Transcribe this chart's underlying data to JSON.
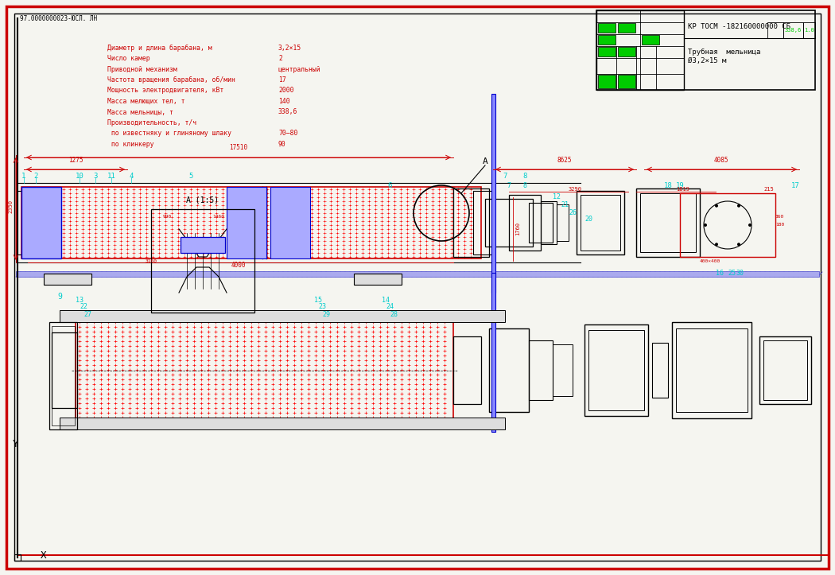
{
  "bg_color": "#f5f5f0",
  "border_color": "#cc0000",
  "line_color": "#000000",
  "cyan_color": "#00cccc",
  "red_color": "#cc0000",
  "blue_color": "#0000cc",
  "green_color": "#00cc00",
  "title_stamp": "КР ТОСМ -182160000000 СБ",
  "subtitle_stamp": "Трубная  мельница\nØ3,2×15 м",
  "doc_number": "97.0000000023-ЮСЛ. ЛН",
  "tech_specs": [
    [
      "Диаметр и длина барабана, м",
      "3,2×15"
    ],
    [
      "Число камер",
      "2"
    ],
    [
      "Приводной механизм",
      "центральный"
    ],
    [
      "Частота вращения барабана, об/мин",
      "17"
    ],
    [
      "Мощность электродвигателя, кВт",
      "2000"
    ],
    [
      "Масса мелющих тел, т",
      "140"
    ],
    [
      "Масса мельницы, т",
      "338,6"
    ],
    [
      "Производительность, т/ч",
      ""
    ],
    [
      " по известняку и глиняному шлаку",
      "70–80"
    ],
    [
      " по клинкеру",
      "90"
    ]
  ],
  "dim_labels_top": [
    "1275",
    "17510",
    "8625",
    "4085"
  ],
  "dim_labels_mid": [
    "3290",
    "1819",
    "215"
  ],
  "section_label": "А (1:5)",
  "view_label": "А"
}
